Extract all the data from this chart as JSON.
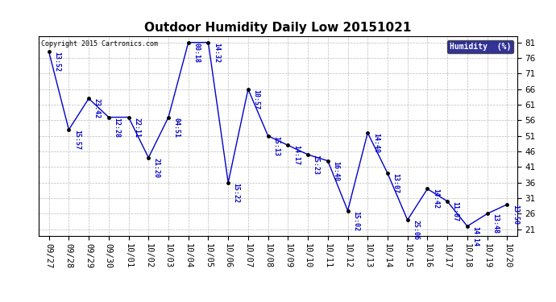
{
  "title": "Outdoor Humidity Daily Low 20151021",
  "copyright": "Copyright 2015 Cartronics.com",
  "legend_label": "Humidity  (%)",
  "dates": [
    "09/27",
    "09/28",
    "09/29",
    "09/30",
    "10/01",
    "10/02",
    "10/03",
    "10/04",
    "10/05",
    "10/06",
    "10/07",
    "10/08",
    "10/09",
    "10/10",
    "10/11",
    "10/12",
    "10/13",
    "10/14",
    "10/15",
    "10/16",
    "10/17",
    "10/18",
    "10/19",
    "10/20"
  ],
  "values": [
    78,
    53,
    63,
    57,
    57,
    44,
    57,
    81,
    81,
    36,
    66,
    51,
    48,
    45,
    43,
    27,
    52,
    39,
    24,
    34,
    30,
    22,
    26,
    29
  ],
  "labels": [
    "13:52",
    "15:57",
    "23:42",
    "12:28",
    "22:11",
    "21:20",
    "04:51",
    "00:18",
    "14:32",
    "15:22",
    "10:57",
    "15:13",
    "14:17",
    "15:23",
    "16:40",
    "15:02",
    "14:40",
    "13:07",
    "25:06",
    "14:42",
    "11:07",
    "14:14",
    "13:48",
    "13:50"
  ],
  "line_color": "#0000cc",
  "marker_color": "#000000",
  "bg_color": "#ffffff",
  "grid_color": "#bbbbbb",
  "ylim_min": 19,
  "ylim_max": 83,
  "yticks": [
    21,
    26,
    31,
    36,
    41,
    46,
    51,
    56,
    61,
    66,
    71,
    76,
    81
  ],
  "title_fontsize": 11,
  "label_fontsize": 6.0,
  "tick_fontsize": 7.5,
  "legend_bg": "#000080",
  "legend_fg": "#ffffff"
}
